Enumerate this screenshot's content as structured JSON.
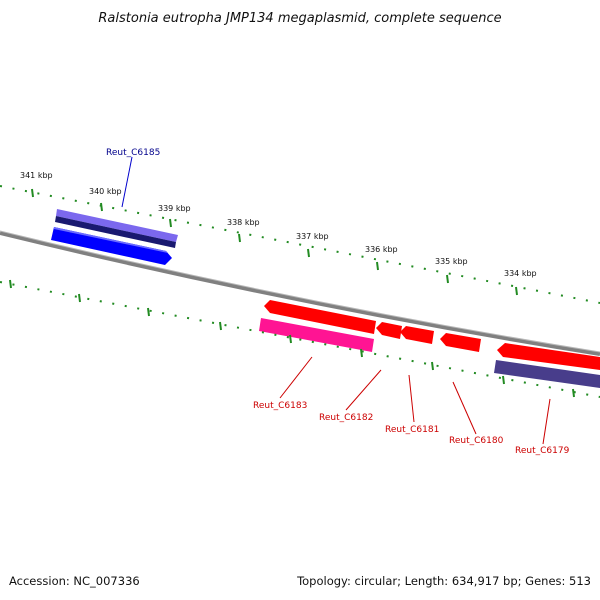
{
  "title": "Ralstonia eutropha JMP134 megaplasmid, complete sequence",
  "accession": "Accession: NC_007336",
  "summary": "Topology: circular; Length: 634,917 bp; Genes: 513",
  "colors": {
    "backbone": "#808080",
    "ticks": "#228b22",
    "forward_gene": "#0000ff",
    "forward_cds": "#6a5acd",
    "reverse_gene": "#ff0000",
    "reverse_cds": "#ff1493",
    "reverse_cds_alt": "#483d8b",
    "forward_label": "#00008b",
    "reverse_label": "#cc0000"
  },
  "scale_labels": [
    "341 kbp",
    "340 kbp",
    "339 kbp",
    "338 kbp",
    "337 kbp",
    "336 kbp",
    "335 kbp",
    "334 kbp"
  ],
  "genes": [
    {
      "name": "Reut_C6185",
      "strand": "forward"
    },
    {
      "name": "Reut_C6183",
      "strand": "reverse"
    },
    {
      "name": "Reut_C6182",
      "strand": "reverse"
    },
    {
      "name": "Reut_C6181",
      "strand": "reverse"
    },
    {
      "name": "Reut_C6180",
      "strand": "reverse"
    },
    {
      "name": "Reut_C6179",
      "strand": "reverse"
    }
  ]
}
